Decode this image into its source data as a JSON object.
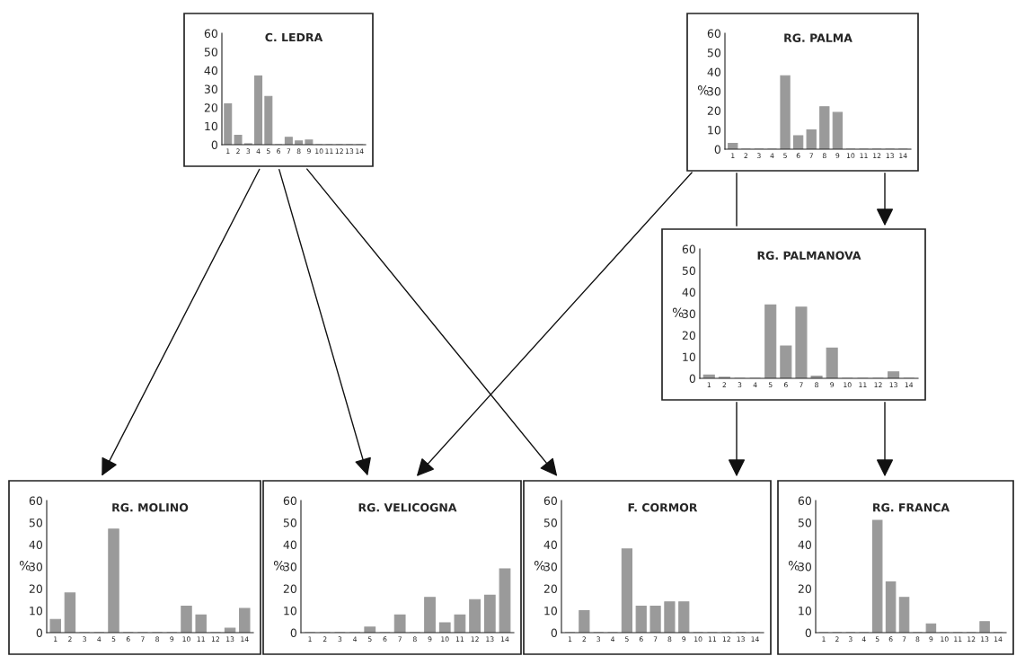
{
  "chart_data": [
    {
      "type": "bar",
      "title": "C. LEDRA",
      "categories": [
        "1",
        "2",
        "3",
        "4",
        "5",
        "6",
        "7",
        "8",
        "9",
        "10",
        "11",
        "12",
        "13",
        "14"
      ],
      "values": [
        22,
        5,
        0.5,
        37,
        26,
        0,
        4,
        2,
        2.5,
        0,
        0,
        0,
        0,
        0
      ],
      "color": "#9a9a9a",
      "ylim": [
        0,
        60
      ],
      "yticks": [
        0,
        10,
        20,
        30,
        40,
        50,
        60
      ],
      "grid": false
    },
    {
      "type": "bar",
      "title": "RG. PALMA",
      "ylabel": "%",
      "categories": [
        "1",
        "2",
        "3",
        "4",
        "5",
        "6",
        "7",
        "8",
        "9",
        "10",
        "11",
        "12",
        "13",
        "14"
      ],
      "values": [
        3,
        0,
        0,
        0,
        38,
        7,
        10,
        22,
        19,
        0,
        0,
        0,
        0,
        0
      ],
      "color": "#9a9a9a",
      "ylim": [
        0,
        60
      ],
      "yticks": [
        0,
        10,
        20,
        30,
        40,
        50,
        60
      ],
      "grid": false
    },
    {
      "type": "bar",
      "title": "RG. PALMANOVA",
      "ylabel": "%",
      "categories": [
        "1",
        "2",
        "3",
        "4",
        "5",
        "6",
        "7",
        "8",
        "9",
        "10",
        "11",
        "12",
        "13",
        "14"
      ],
      "values": [
        1.5,
        0.5,
        0,
        0,
        34,
        15,
        33,
        1,
        14,
        0,
        0,
        0,
        3,
        0
      ],
      "color": "#9a9a9a",
      "ylim": [
        0,
        60
      ],
      "yticks": [
        0,
        10,
        20,
        30,
        40,
        50,
        60
      ],
      "grid": false
    },
    {
      "type": "bar",
      "title": "RG. MOLINO",
      "ylabel": "%",
      "categories": [
        "1",
        "2",
        "3",
        "4",
        "5",
        "6",
        "7",
        "8",
        "9",
        "10",
        "11",
        "12",
        "13",
        "14"
      ],
      "values": [
        6,
        18,
        0,
        0,
        47,
        0,
        0,
        0,
        0,
        12,
        8,
        0,
        2,
        11
      ],
      "color": "#9a9a9a",
      "ylim": [
        0,
        60
      ],
      "yticks": [
        0,
        10,
        20,
        30,
        40,
        50,
        60
      ],
      "grid": false
    },
    {
      "type": "bar",
      "title": "RG. VELICOGNA",
      "ylabel": "%",
      "categories": [
        "1",
        "2",
        "3",
        "4",
        "5",
        "6",
        "7",
        "8",
        "9",
        "10",
        "11",
        "12",
        "13",
        "14"
      ],
      "values": [
        0,
        0,
        0,
        0,
        2.5,
        0,
        8,
        0,
        16,
        4.5,
        8,
        15,
        17,
        29
      ],
      "color": "#9a9a9a",
      "ylim": [
        0,
        60
      ],
      "yticks": [
        0,
        10,
        20,
        30,
        40,
        50,
        60
      ],
      "grid": false
    },
    {
      "type": "bar",
      "title": "F. CORMOR",
      "ylabel": "%",
      "categories": [
        "1",
        "2",
        "3",
        "4",
        "5",
        "6",
        "7",
        "8",
        "9",
        "10",
        "11",
        "12",
        "13",
        "14"
      ],
      "values": [
        0,
        10,
        0,
        0,
        38,
        12,
        12,
        14,
        14,
        0,
        0,
        0,
        0,
        0
      ],
      "color": "#9a9a9a",
      "ylim": [
        0,
        60
      ],
      "yticks": [
        0,
        10,
        20,
        30,
        40,
        50,
        60
      ],
      "grid": false
    },
    {
      "type": "bar",
      "title": "RG. FRANCA",
      "ylabel": "%",
      "categories": [
        "1",
        "2",
        "3",
        "4",
        "5",
        "6",
        "7",
        "8",
        "9",
        "10",
        "11",
        "12",
        "13",
        "14"
      ],
      "values": [
        0,
        0,
        0,
        0,
        51,
        23,
        16,
        0,
        4,
        0,
        0,
        0,
        5,
        0
      ],
      "color": "#9a9a9a",
      "ylim": [
        0,
        60
      ],
      "yticks": [
        0,
        10,
        20,
        30,
        40,
        50,
        60
      ],
      "grid": false
    }
  ]
}
